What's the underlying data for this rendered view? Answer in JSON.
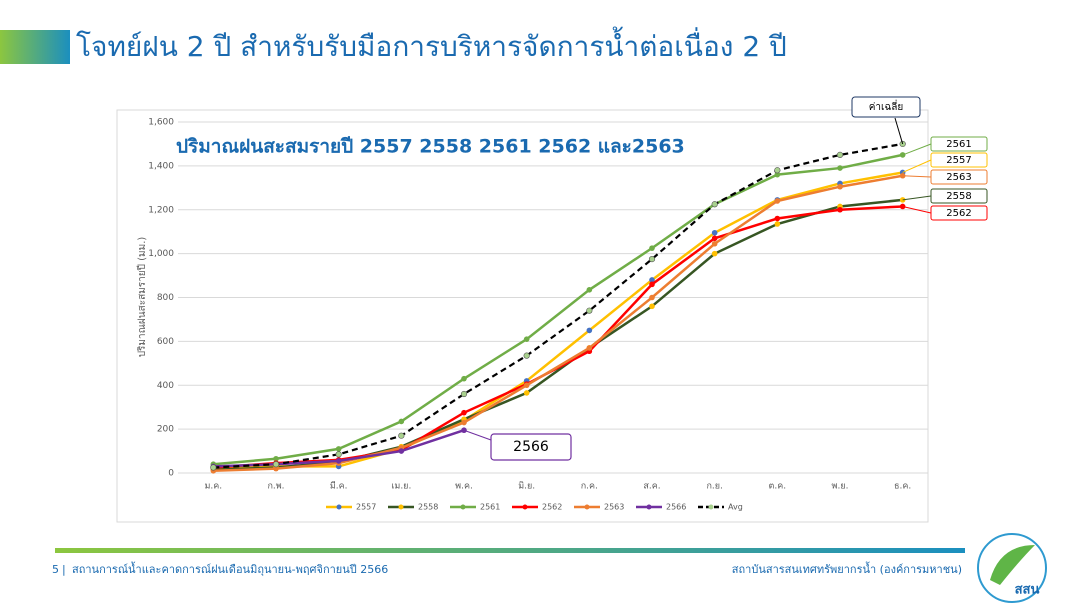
{
  "slide": {
    "title": "โจทย์ฝน 2 ปี สำหรับรับมือการบริหารจัดการน้ำต่อเนื่อง 2 ปี",
    "page_number": "5",
    "footer_left": "สถานการณ์น้ำและคาดการณ์ฝนเดือนมิถุนายน-พฤศจิกายนปี 2566",
    "footer_right": "สถาบันสารสนเทศทรัพยากรน้ำ (องค์การมหาชน)",
    "logo_text": "สสน"
  },
  "chart_data": {
    "type": "line",
    "title": "ปริมาณฝนสะสมรายปี 2557 2558 2561 2562 และ2563",
    "y_label": "ปริมาณฝนสะสมรายปี (มม.)",
    "categories": [
      "ม.ค.",
      "ก.พ.",
      "มี.ค.",
      "เม.ย.",
      "พ.ค.",
      "มิ.ย.",
      "ก.ค.",
      "ส.ค.",
      "ก.ย.",
      "ต.ค.",
      "พ.ย.",
      "ธ.ค."
    ],
    "ylim": [
      0,
      1600
    ],
    "yticks": [
      0,
      200,
      400,
      600,
      800,
      {
        "value": 1000,
        "label": "1,000"
      },
      {
        "value": 1200,
        "label": "1,200"
      },
      {
        "value": 1400,
        "label": "1,400"
      },
      {
        "value": 1600,
        "label": "1,600"
      }
    ],
    "grid": true,
    "legend": "bottom",
    "annotation": "ค่าเฉลี่ย",
    "series": [
      {
        "name": "2557",
        "color": "#ffc000",
        "marker_color": "#4472c4",
        "values": [
          20,
          30,
          30,
          110,
          240,
          420,
          650,
          880,
          1095,
          1245,
          1320,
          1370
        ]
      },
      {
        "name": "2558",
        "color": "#375623",
        "marker_color": "#ffc000",
        "values": [
          15,
          25,
          50,
          120,
          245,
          365,
          570,
          760,
          1000,
          1135,
          1215,
          1245
        ]
      },
      {
        "name": "2561",
        "color": "#70ad47",
        "marker_color": "#70ad47",
        "values": [
          40,
          65,
          110,
          235,
          430,
          610,
          835,
          1025,
          1225,
          1360,
          1390,
          1450
        ]
      },
      {
        "name": "2562",
        "color": "#ff0000",
        "marker_color": "#ff0000",
        "values": [
          25,
          45,
          60,
          105,
          275,
          405,
          555,
          860,
          1070,
          1160,
          1200,
          1215
        ]
      },
      {
        "name": "2563",
        "color": "#ed7d31",
        "marker_color": "#ed7d31",
        "values": [
          10,
          20,
          45,
          115,
          230,
          400,
          570,
          800,
          1045,
          1240,
          1305,
          1355
        ]
      },
      {
        "name": "2566",
        "color": "#7030a0",
        "marker_color": "#7030a0",
        "values": [
          30,
          40,
          55,
          100,
          195,
          null,
          null,
          null,
          null,
          null,
          null,
          null
        ]
      },
      {
        "name": "Avg",
        "color": "#000000",
        "marker_color": "#a9d18e",
        "dashed": true,
        "values": [
          25,
          40,
          85,
          170,
          360,
          535,
          740,
          975,
          1225,
          1380,
          1450,
          1500
        ]
      }
    ]
  }
}
